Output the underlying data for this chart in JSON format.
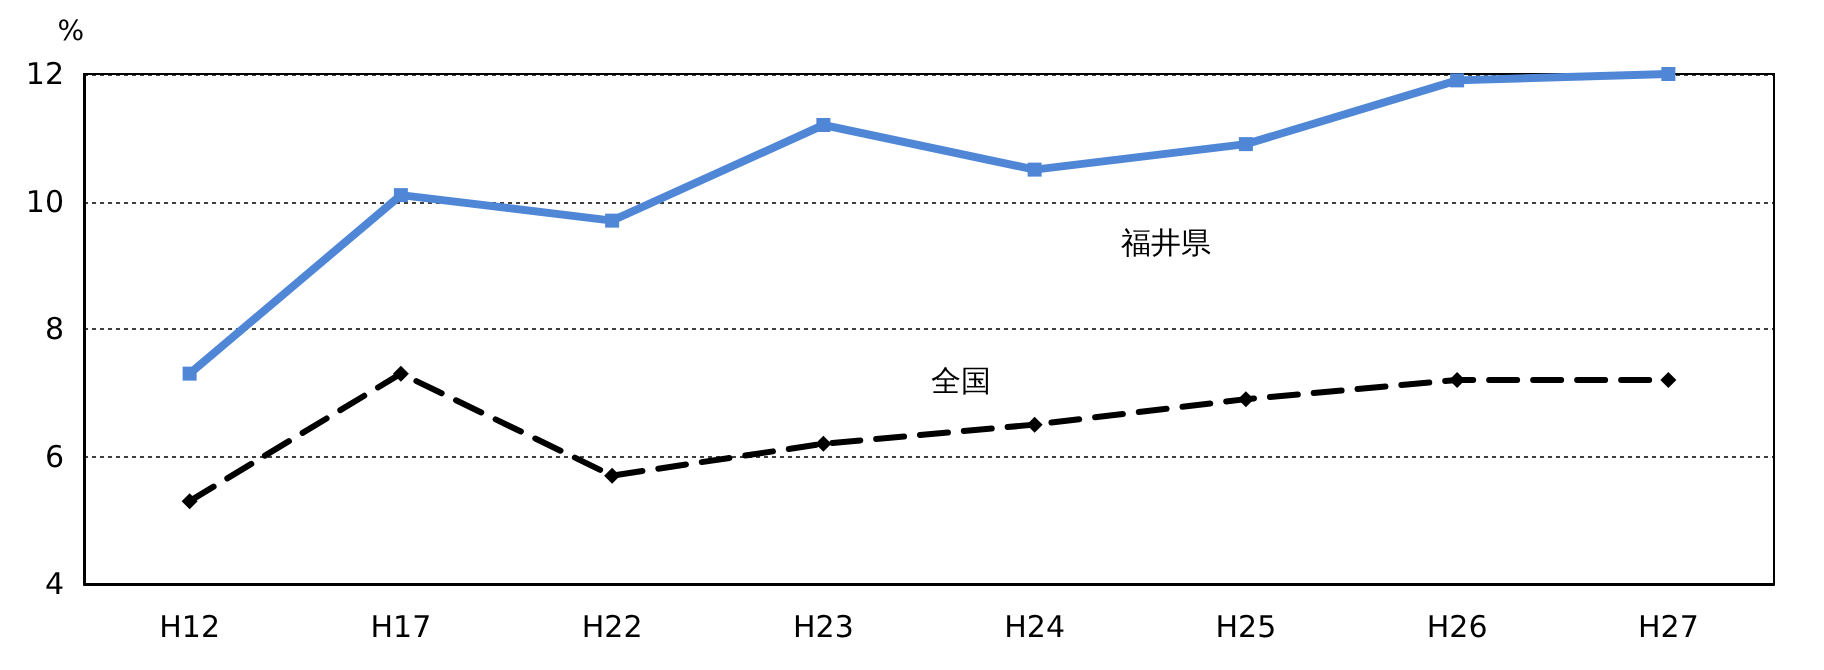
{
  "chart_data": {
    "type": "line",
    "ylabel": "%",
    "categories": [
      "H12",
      "H17",
      "H22",
      "H23",
      "H24",
      "H25",
      "H26",
      "H27"
    ],
    "series": [
      {
        "name": "福井県",
        "color": "#4f87d6",
        "marker": "square",
        "line_style": "solid",
        "values": [
          7.3,
          10.1,
          9.7,
          11.2,
          10.5,
          10.9,
          11.9,
          12.0
        ]
      },
      {
        "name": "全国",
        "color": "#000000",
        "marker": "diamond",
        "line_style": "dashed",
        "values": [
          5.3,
          7.3,
          5.7,
          6.2,
          6.5,
          6.9,
          7.2,
          7.2
        ]
      }
    ],
    "ylim": [
      4,
      12
    ],
    "yticks": [
      4,
      6,
      8,
      10,
      12
    ],
    "grid": "y",
    "legend": false
  }
}
